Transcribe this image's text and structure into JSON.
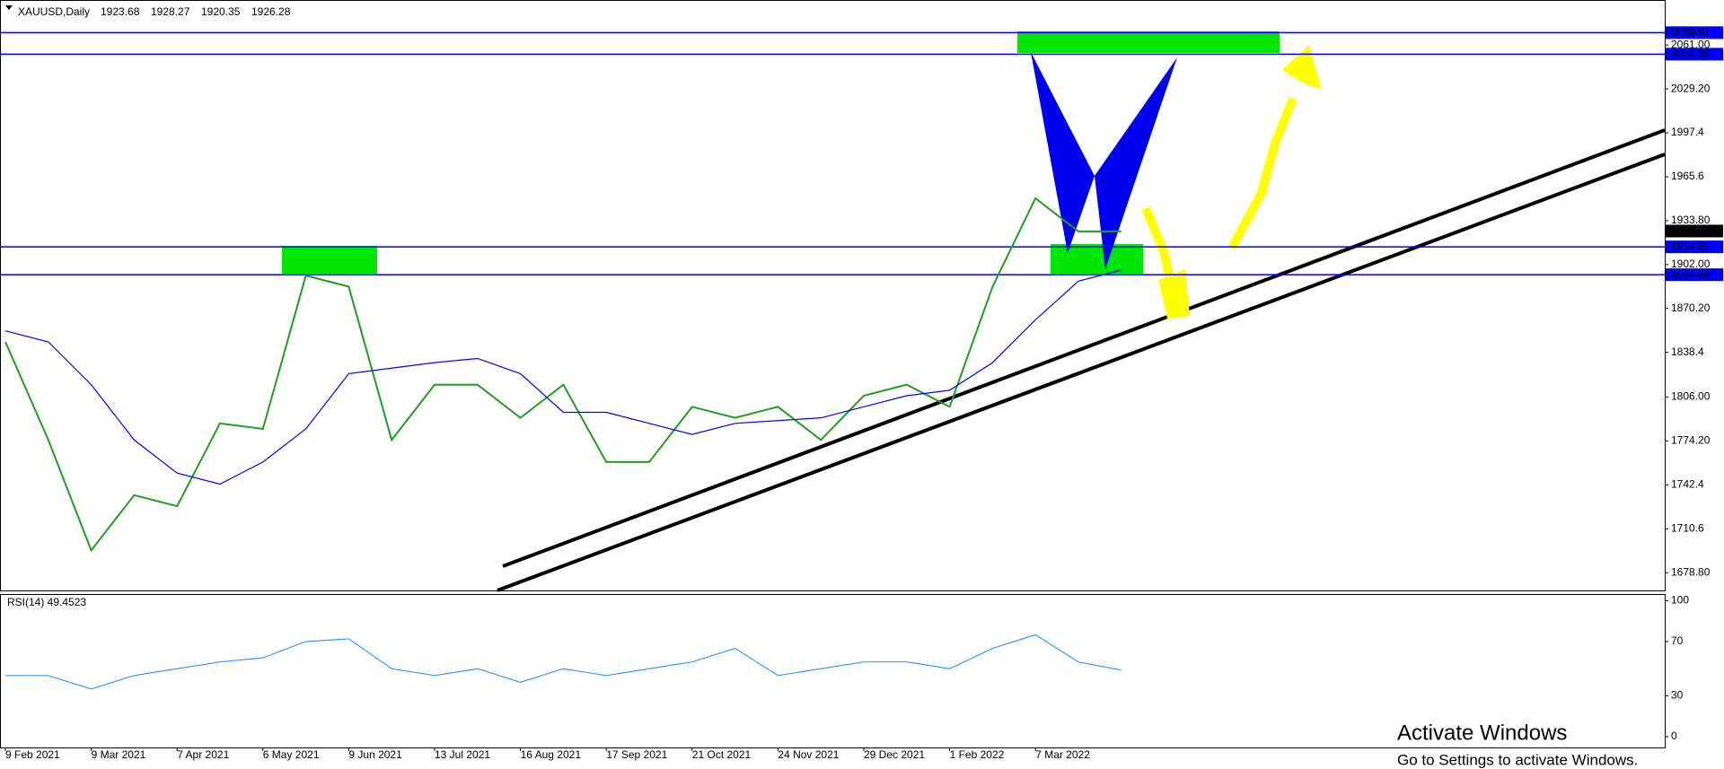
{
  "chart_data": [
    {
      "type": "line",
      "title": "XAUUSD,Daily",
      "quote": [
        1923.68,
        1928.27,
        1920.35,
        1926.28
      ],
      "categories": [
        "9 Feb 2021",
        null,
        "9 Mar 2021",
        null,
        "7 Apr 2021",
        null,
        "6 May 2021",
        null,
        "9 Jun 2021",
        null,
        "13 Jul 2021",
        null,
        "16 Aug 2021",
        null,
        "17 Sep 2021",
        null,
        "21 Oct 2021",
        null,
        "24 Nov 2021",
        null,
        "29 Dec 2021",
        null,
        "1 Feb 2022",
        null,
        "7 Mar 2022",
        null,
        null
      ],
      "series": [
        {
          "color": "#1e9e1e",
          "values": [
            1846,
            1775,
            1695,
            1735,
            1727,
            1787,
            1783,
            1894,
            1886,
            1775,
            1815,
            1815,
            1791,
            1815,
            1759,
            1759,
            1799,
            1791,
            1799,
            1775,
            1807,
            1815,
            1799,
            1886,
            1950,
            1926,
            1926
          ]
        },
        {
          "color": "#0000ff",
          "values": [
            1854,
            1846,
            1815,
            1775,
            1751,
            1743,
            1759,
            1783,
            1823,
            1827,
            1831,
            1834,
            1823,
            1795,
            1795,
            1787,
            1779,
            1787,
            1789,
            1791,
            1799,
            1807,
            1811,
            1831,
            1862,
            1890,
            1898
          ]
        }
      ],
      "ylim": [
        1666,
        2091
      ],
      "yticks": [
        {
          "value": 2061,
          "label": "2061.00"
        },
        {
          "value": 2029.2,
          "label": "2029.20"
        },
        1997.4,
        1965.6,
        {
          "value": 1933.8,
          "label": "1933.80"
        },
        {
          "value": 1902,
          "label": "1902.00"
        },
        {
          "value": 1870.2,
          "label": "1870.20"
        },
        1838.4,
        {
          "value": 1806,
          "label": "1806.00"
        },
        {
          "value": 1774.2,
          "label": "1774.20"
        },
        1742.4,
        1710.6,
        {
          "value": 1678.8,
          "label": "1678.80"
        }
      ],
      "levels": [
        2069.97,
        2054.39,
        1914.81,
        1894.68
      ],
      "level_color": "#0000ff"
    },
    {
      "type": "line",
      "title": "RSI(14) 49.4523",
      "series": [
        {
          "color": "#3399ff",
          "values": [
            45,
            45,
            35,
            45,
            50,
            55,
            58,
            70,
            72,
            50,
            45,
            50,
            40,
            50,
            45,
            50,
            55,
            65,
            45,
            50,
            55,
            55,
            50,
            65,
            75,
            55,
            49
          ]
        }
      ],
      "ylim": [
        -8,
        105
      ],
      "yticks": [
        0,
        30,
        70,
        100
      ]
    }
  ],
  "watermark": [
    "Activate Windows",
    "Go to Settings to activate Windows."
  ]
}
